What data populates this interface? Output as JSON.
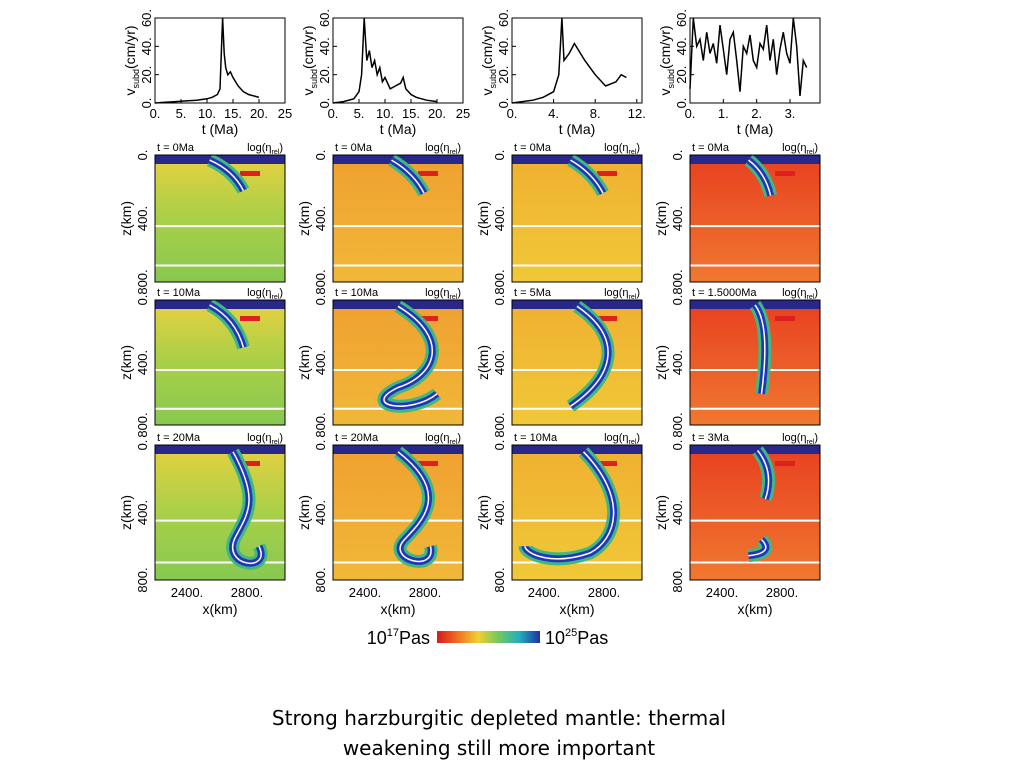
{
  "chart_data": [
    {
      "type": "line",
      "y_label": {
        "symbol": "v",
        "subscript": "subd",
        "unit": "(cm/yr)"
      },
      "x_label": "t (Ma)",
      "color": "#000000",
      "x": [
        0,
        2,
        4,
        6,
        8,
        10,
        11,
        12,
        12.5,
        13,
        13.3,
        13.6,
        14,
        14.5,
        15,
        16,
        17,
        18,
        20
      ],
      "values": [
        0,
        0.5,
        1,
        1.5,
        2,
        3,
        4,
        6,
        10,
        60,
        35,
        25,
        20,
        22,
        18,
        12,
        8,
        6,
        4
      ],
      "xlim": [
        0,
        25
      ],
      "ylim": [
        0,
        60
      ],
      "xticks": [
        {
          "value": 0,
          "label": "0."
        },
        {
          "value": 5,
          "label": "5."
        },
        {
          "value": 10,
          "label": "10."
        },
        {
          "value": 15,
          "label": "15."
        },
        {
          "value": 20,
          "label": "20."
        },
        25
      ],
      "yticks": [
        {
          "value": 0,
          "label": "0."
        },
        {
          "value": 20,
          "label": "20."
        },
        {
          "value": 40,
          "label": "40."
        },
        {
          "value": 60,
          "label": "60."
        }
      ]
    },
    {
      "type": "line",
      "y_label": {
        "symbol": "v",
        "subscript": "subd",
        "unit": "(cm/yr)"
      },
      "x_label": "t (Ma)",
      "color": "#000000",
      "x": [
        0,
        2,
        4,
        5,
        5.5,
        6,
        6.5,
        7,
        7.5,
        8,
        8.5,
        9,
        9.5,
        10,
        11,
        12,
        13,
        13.5,
        14,
        15,
        16,
        18,
        20
      ],
      "values": [
        0,
        1,
        3,
        8,
        20,
        60,
        30,
        37,
        25,
        30,
        20,
        25,
        15,
        18,
        10,
        12,
        14,
        18,
        10,
        6,
        4,
        2,
        1
      ],
      "xlim": [
        0,
        25
      ],
      "ylim": [
        0,
        60
      ],
      "xticks": [
        {
          "value": 0,
          "label": "0."
        },
        {
          "value": 5,
          "label": "5."
        },
        {
          "value": 10,
          "label": "10."
        },
        {
          "value": 15,
          "label": "15."
        },
        {
          "value": 20,
          "label": "20."
        },
        25
      ],
      "yticks": [
        {
          "value": 0,
          "label": "0."
        },
        {
          "value": 20,
          "label": "20."
        },
        {
          "value": 40,
          "label": "40."
        },
        {
          "value": 60,
          "label": "60."
        }
      ]
    },
    {
      "type": "line",
      "y_label": {
        "symbol": "v",
        "subscript": "subd",
        "unit": "(cm/yr)"
      },
      "x_label": "t (Ma)",
      "color": "#000000",
      "x": [
        0,
        1,
        2,
        3,
        4,
        4.5,
        4.8,
        5,
        5.5,
        6,
        7,
        8,
        9,
        10,
        10.5,
        11
      ],
      "values": [
        0,
        1,
        2,
        4,
        8,
        20,
        60,
        30,
        35,
        42,
        30,
        20,
        12,
        15,
        20,
        18
      ],
      "xlim": [
        0,
        12.5
      ],
      "ylim": [
        0,
        60
      ],
      "xticks": [
        {
          "value": 0,
          "label": "0."
        },
        {
          "value": 4,
          "label": "4."
        },
        {
          "value": 8,
          "label": "8."
        },
        {
          "value": 12,
          "label": "12."
        }
      ],
      "yticks": [
        {
          "value": 0,
          "label": "0."
        },
        {
          "value": 20,
          "label": "20."
        },
        {
          "value": 40,
          "label": "40."
        },
        {
          "value": 60,
          "label": "60."
        }
      ]
    },
    {
      "type": "line",
      "y_label": {
        "symbol": "v",
        "subscript": "subd",
        "unit": "(cm/yr)"
      },
      "x_label": "t (Ma)",
      "color": "#000000",
      "x": [
        0,
        0.1,
        0.2,
        0.3,
        0.4,
        0.5,
        0.6,
        0.7,
        0.8,
        0.9,
        1,
        1.1,
        1.2,
        1.3,
        1.4,
        1.5,
        1.6,
        1.7,
        1.8,
        1.9,
        2,
        2.1,
        2.2,
        2.3,
        2.4,
        2.5,
        2.6,
        2.7,
        2.8,
        2.9,
        3,
        3.1,
        3.2,
        3.3,
        3.4,
        3.5
      ],
      "values": [
        10,
        60,
        40,
        45,
        30,
        50,
        35,
        42,
        28,
        55,
        38,
        20,
        45,
        50,
        30,
        8,
        40,
        35,
        48,
        30,
        25,
        42,
        38,
        55,
        30,
        45,
        20,
        38,
        50,
        35,
        28,
        60,
        40,
        5,
        30,
        25
      ],
      "xlim": [
        0,
        3.9
      ],
      "ylim": [
        0,
        60
      ],
      "xticks": [
        {
          "value": 0,
          "label": "0."
        },
        {
          "value": 1,
          "label": "1."
        },
        {
          "value": 2,
          "label": "2."
        },
        {
          "value": 3,
          "label": "3."
        }
      ],
      "yticks": [
        {
          "value": 0,
          "label": "0."
        },
        {
          "value": 20,
          "label": "20."
        },
        {
          "value": 40,
          "label": "40."
        },
        {
          "value": 60,
          "label": "60."
        }
      ]
    }
  ],
  "quantity": {
    "symbol": "log(η",
    "subscript": "rel",
    "close": ")"
  },
  "snapshots": [
    [
      "t = 0Ma",
      "t = 0Ma",
      "t = 0Ma",
      "t = 0Ma"
    ],
    [
      "t = 10Ma",
      "t = 10Ma",
      "t = 5Ma",
      "t = 1.5000Ma"
    ],
    [
      "t = 20Ma",
      "t = 20Ma",
      "t = 10Ma",
      "t = 3Ma"
    ]
  ],
  "z_label": "z(km)",
  "z_ticks": [
    "0.",
    "400.",
    "800."
  ],
  "x_label": "x(km)",
  "x_ticks": [
    "2400.",
    "2800."
  ],
  "colorbar": {
    "min_base": "10",
    "min_exp": "17",
    "min_unit": "Pas",
    "max_base": "10",
    "max_exp": "25",
    "max_unit": "Pas"
  },
  "caption": [
    "Strong harzburgitic depleted mantle: thermal",
    "weakening still more important"
  ]
}
